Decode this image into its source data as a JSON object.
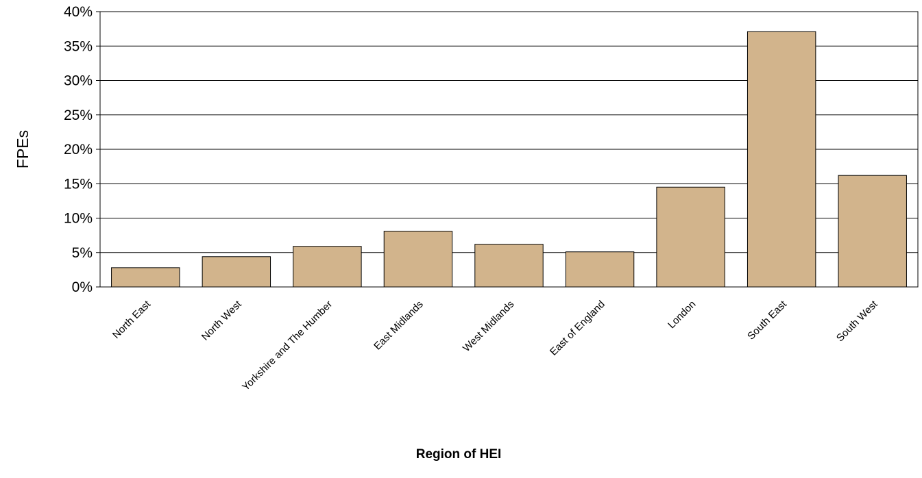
{
  "chart_data": {
    "type": "bar",
    "title": "",
    "xlabel": "Region of HEI",
    "ylabel": "FPEs",
    "ylim": [
      0,
      40
    ],
    "yticks": [
      "0%",
      "5%",
      "10%",
      "15%",
      "20%",
      "25%",
      "30%",
      "35%",
      "40%"
    ],
    "grid": true,
    "legend": "none",
    "bar_color": "#D2B48C",
    "categories": [
      "North East",
      "North West",
      "Yorkshire and The Humber",
      "East Midlands",
      "West Midlands",
      "East of England",
      "London",
      "South East",
      "South West"
    ],
    "values": [
      2.8,
      4.4,
      5.9,
      8.1,
      6.2,
      5.1,
      14.5,
      37.1,
      16.2
    ]
  }
}
